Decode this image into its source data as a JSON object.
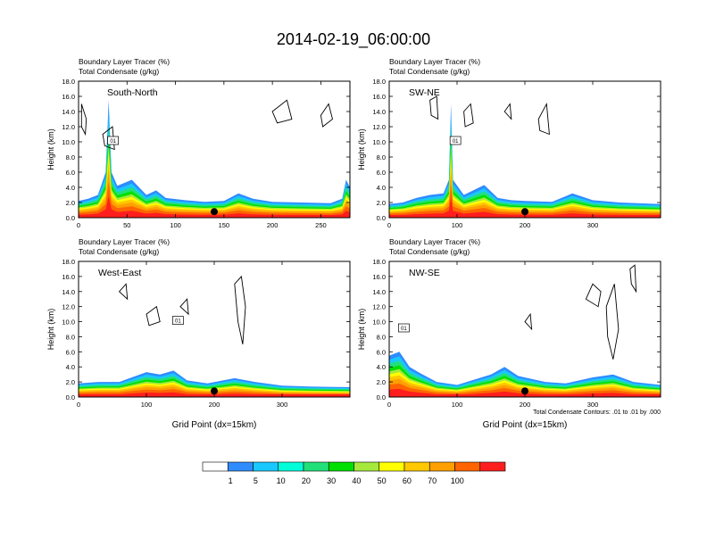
{
  "figure": {
    "title": "2014-02-19_06:00:00",
    "contour_note": "Total Condensate Contours: .01 to .01 by .000",
    "x_axis_title": "Grid Point (dx=15km)"
  },
  "chart_data": [
    {
      "type": "heatmap",
      "panel": "South-North",
      "title_line1": "Boundary Layer Tracer    (%)",
      "title_line2": "Total Condensate    (g/kg)",
      "ylabel": "Height (km)",
      "xlabel": "",
      "xlim": [
        0,
        280
      ],
      "ylim": [
        0,
        18
      ],
      "xticks": [
        0,
        50,
        100,
        150,
        200,
        250
      ],
      "yticks": [
        "0.0",
        "2.0",
        "4.0",
        "6.0",
        "8.0",
        "10.0",
        "12.0",
        "14.0",
        "16.0",
        "18.0"
      ],
      "contour_label": "0.01",
      "marker_x": 140,
      "tracer_top_km": [
        [
          0,
          2.2
        ],
        [
          10,
          2.5
        ],
        [
          20,
          3.0
        ],
        [
          28,
          6.0
        ],
        [
          31,
          15.5
        ],
        [
          34,
          6.0
        ],
        [
          40,
          4.2
        ],
        [
          55,
          5.0
        ],
        [
          70,
          3.0
        ],
        [
          80,
          3.6
        ],
        [
          90,
          2.6
        ],
        [
          110,
          2.3
        ],
        [
          130,
          2.1
        ],
        [
          150,
          2.2
        ],
        [
          165,
          3.2
        ],
        [
          180,
          2.5
        ],
        [
          200,
          2.1
        ],
        [
          230,
          2.0
        ],
        [
          260,
          1.9
        ],
        [
          272,
          2.5
        ],
        [
          276,
          5.0
        ],
        [
          280,
          4.0
        ]
      ]
    },
    {
      "type": "heatmap",
      "panel": "SW-NE",
      "title_line1": "Boundary Layer Tracer    (%)",
      "title_line2": "Total Condensate    (g/kg)",
      "ylabel": "Height (km)",
      "xlabel": "",
      "xlim": [
        0,
        400
      ],
      "ylim": [
        0,
        18
      ],
      "xticks": [
        0,
        100,
        200,
        300
      ],
      "yticks": [
        "0.0",
        "2.0",
        "4.0",
        "6.0",
        "8.0",
        "10.0",
        "12.0",
        "14.0",
        "16.0",
        "18.0"
      ],
      "contour_label": "0.01",
      "marker_x": 200,
      "tracer_top_km": [
        [
          0,
          1.8
        ],
        [
          20,
          2.0
        ],
        [
          40,
          2.6
        ],
        [
          60,
          3.0
        ],
        [
          80,
          3.2
        ],
        [
          88,
          5.0
        ],
        [
          91,
          15.0
        ],
        [
          94,
          5.0
        ],
        [
          110,
          3.0
        ],
        [
          140,
          4.3
        ],
        [
          160,
          2.6
        ],
        [
          180,
          2.3
        ],
        [
          200,
          2.2
        ],
        [
          240,
          2.1
        ],
        [
          270,
          3.2
        ],
        [
          300,
          2.3
        ],
        [
          340,
          2.0
        ],
        [
          400,
          1.8
        ]
      ]
    },
    {
      "type": "heatmap",
      "panel": "West-East",
      "title_line1": "Boundary Layer Tracer    (%)",
      "title_line2": "Total Condensate    (g/kg)",
      "ylabel": "Height (km)",
      "xlabel": "Grid Point (dx=15km)",
      "xlim": [
        0,
        400
      ],
      "ylim": [
        0,
        18
      ],
      "xticks": [
        0,
        100,
        200,
        300
      ],
      "yticks": [
        "0.0",
        "2.0",
        "4.0",
        "6.0",
        "8.0",
        "10.0",
        "12.0",
        "14.0",
        "16.0",
        "18.0"
      ],
      "contour_label": "0.01",
      "marker_x": 200,
      "tracer_top_km": [
        [
          0,
          1.8
        ],
        [
          30,
          2.0
        ],
        [
          60,
          2.0
        ],
        [
          100,
          3.3
        ],
        [
          120,
          3.0
        ],
        [
          140,
          3.5
        ],
        [
          160,
          2.2
        ],
        [
          190,
          1.8
        ],
        [
          230,
          2.5
        ],
        [
          260,
          2.0
        ],
        [
          300,
          1.5
        ],
        [
          340,
          1.4
        ],
        [
          400,
          1.3
        ]
      ]
    },
    {
      "type": "heatmap",
      "panel": "NW-SE",
      "title_line1": "Boundary Layer Tracer    (%)",
      "title_line2": "Total Condensate    (g/kg)",
      "ylabel": "Height (km)",
      "xlabel": "Grid Point (dx=15km)",
      "xlim": [
        0,
        400
      ],
      "ylim": [
        0,
        18
      ],
      "xticks": [
        0,
        100,
        200,
        300
      ],
      "yticks": [
        "0.0",
        "2.0",
        "4.0",
        "6.0",
        "8.0",
        "10.0",
        "12.0",
        "14.0",
        "16.0",
        "18.0"
      ],
      "contour_label": "0.01",
      "marker_x": 200,
      "tracer_top_km": [
        [
          0,
          5.5
        ],
        [
          15,
          6.0
        ],
        [
          30,
          4.0
        ],
        [
          45,
          3.2
        ],
        [
          70,
          2.0
        ],
        [
          100,
          1.6
        ],
        [
          150,
          3.0
        ],
        [
          170,
          4.0
        ],
        [
          190,
          2.8
        ],
        [
          230,
          2.0
        ],
        [
          260,
          1.8
        ],
        [
          300,
          2.6
        ],
        [
          330,
          3.0
        ],
        [
          360,
          2.0
        ],
        [
          400,
          1.6
        ]
      ]
    }
  ],
  "colorbar": {
    "colors": [
      "#ffffff",
      "#2f8cff",
      "#19c8ff",
      "#00ffd8",
      "#21e07a",
      "#00e000",
      "#a6e83c",
      "#ffff00",
      "#ffc800",
      "#ffa000",
      "#ff6400",
      "#ff1e1e"
    ],
    "labels": [
      "1",
      "5",
      "10",
      "20",
      "30",
      "40",
      "50",
      "60",
      "70",
      "100"
    ]
  }
}
